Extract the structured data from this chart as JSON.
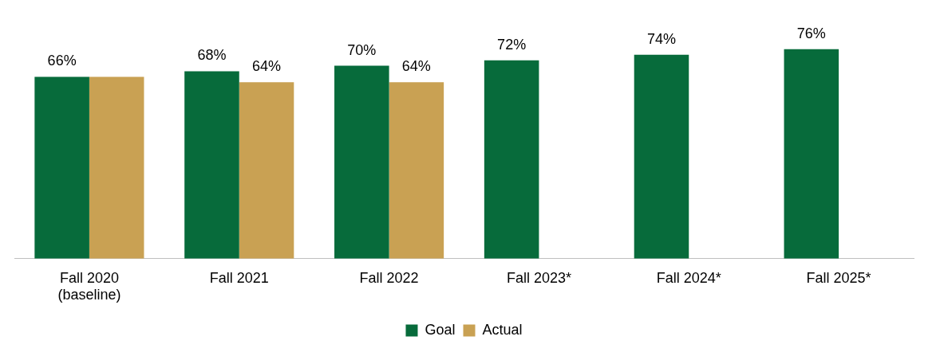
{
  "chart_data": {
    "type": "bar",
    "categories": [
      "Fall 2020\n(baseline)",
      "Fall 2021",
      "Fall 2022",
      "Fall 2023*",
      "Fall 2024*",
      "Fall 2025*"
    ],
    "series": [
      {
        "name": "Goal",
        "color": "#076b3b",
        "values": [
          66,
          68,
          70,
          72,
          74,
          76
        ],
        "value_labels": [
          "66%",
          "68%",
          "70%",
          "72%",
          "74%",
          "76%"
        ]
      },
      {
        "name": "Actual",
        "color": "#c9a153",
        "values": [
          66,
          64,
          64,
          null,
          null,
          null
        ],
        "value_labels": [
          null,
          "64%",
          "64%",
          null,
          null,
          null
        ]
      }
    ],
    "tick_labels": "x",
    "grid": false,
    "legend": "bottom"
  }
}
